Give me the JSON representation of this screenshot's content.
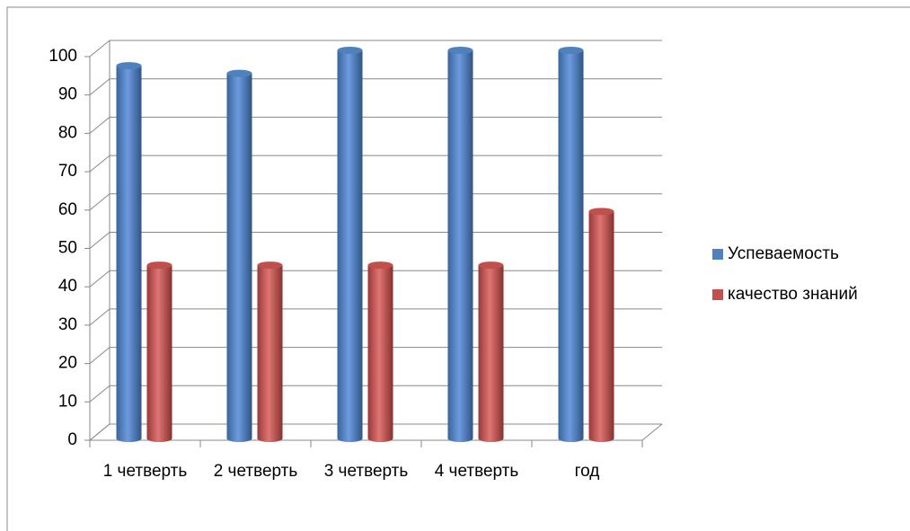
{
  "chart_data": {
    "type": "bar",
    "categories": [
      "1 четверть",
      "2 четверть",
      "3 четверть",
      "4 четверть",
      "год"
    ],
    "series": [
      {
        "name": "Успеваемость",
        "color": "#4f81bd",
        "values": [
          96,
          94,
          100,
          100,
          100
        ]
      },
      {
        "name": "качество знаний",
        "color": "#c0504d",
        "values": [
          44,
          44,
          44,
          44,
          58
        ]
      }
    ],
    "ylim": [
      0,
      100
    ],
    "yticks": [
      0,
      10,
      20,
      30,
      40,
      50,
      60,
      70,
      80,
      90,
      100
    ],
    "grid": true,
    "legend": "right"
  }
}
